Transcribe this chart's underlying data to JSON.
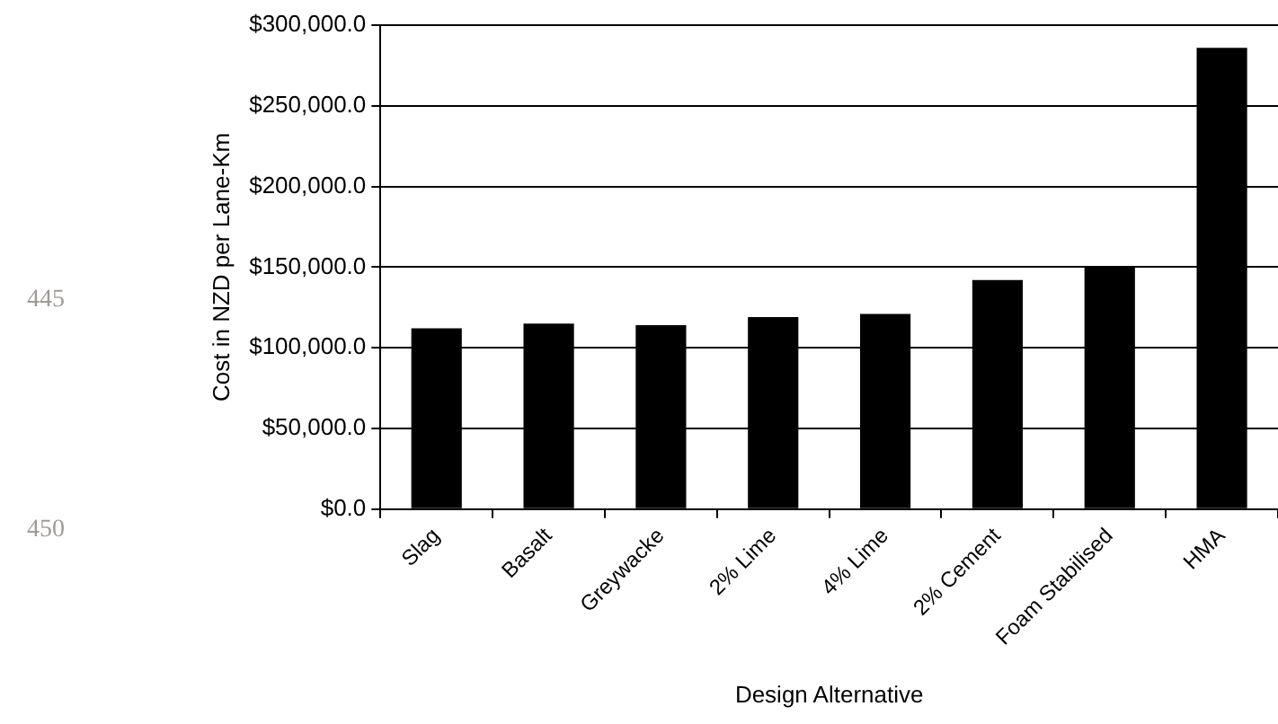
{
  "chart_data": {
    "type": "bar",
    "xlabel": "Design Alternative",
    "ylabel": "Cost in NZD per Lane-Km",
    "categories": [
      "Slag",
      "Basalt",
      "Greywacke",
      "2% Lime",
      "4% Lime",
      "2% Cement",
      "Foam Stabilised",
      "HMA"
    ],
    "values": [
      112000,
      115000,
      114000,
      119000,
      121000,
      142000,
      150000,
      286000
    ],
    "color": "#000000",
    "ylim": [
      0,
      300000
    ],
    "yticks": [
      {
        "value": 0,
        "label": "$0.0"
      },
      {
        "value": 50000,
        "label": "$50,000.0"
      },
      {
        "value": 100000,
        "label": "$100,000.0"
      },
      {
        "value": 150000,
        "label": "$150,000.0"
      },
      {
        "value": 200000,
        "label": "$200,000.0"
      },
      {
        "value": 250000,
        "label": "$250,000.0"
      },
      {
        "value": 300000,
        "label": "$300,000.0"
      }
    ],
    "grid": "y",
    "legend": false,
    "annotations": [
      "445",
      "450"
    ]
  }
}
